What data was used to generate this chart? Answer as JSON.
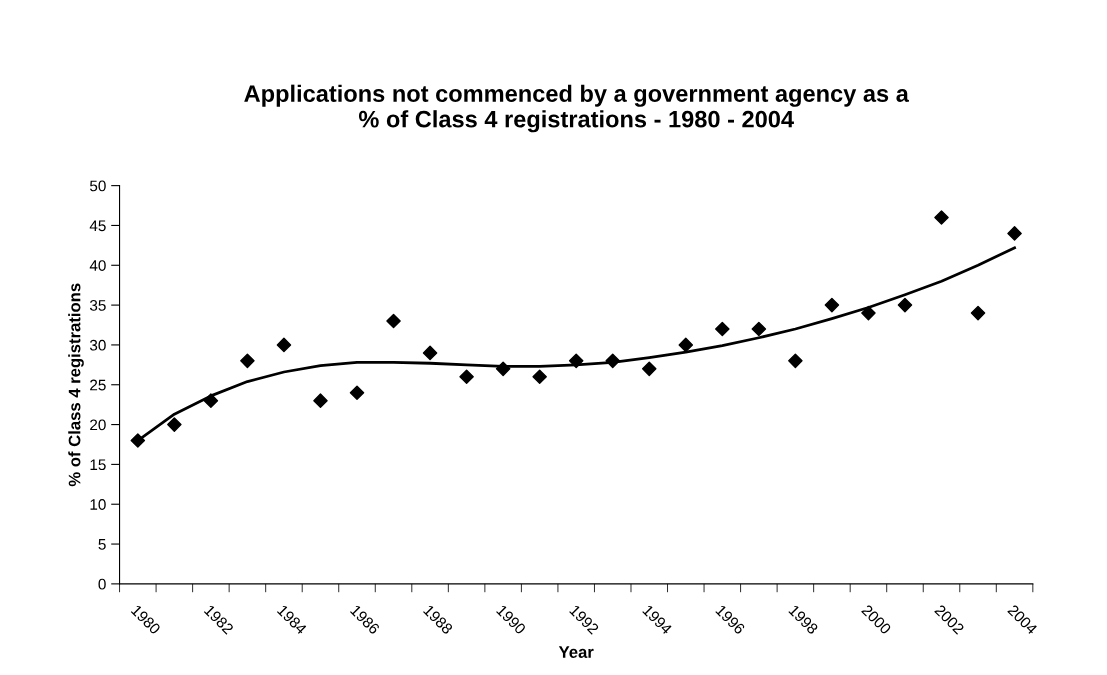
{
  "chart_data": {
    "type": "scatter",
    "title": "Applications not commenced by a government agency as a\n% of Class 4 registrations - 1980 - 2004",
    "xlabel": "Year",
    "ylabel": "% of Class 4 registrations",
    "categories": [
      "1980",
      null,
      "1982",
      null,
      "1984",
      null,
      "1986",
      null,
      "1988",
      null,
      "1990",
      null,
      "1992",
      null,
      "1994",
      null,
      "1996",
      null,
      "1998",
      null,
      "2000",
      null,
      "2002",
      null,
      "2004"
    ],
    "series": [
      {
        "color": "#000000",
        "marker": "diamond",
        "values": [
          18,
          20,
          23,
          28,
          30,
          23,
          24,
          33,
          29,
          26,
          27,
          26,
          28,
          28,
          27,
          30,
          32,
          32,
          28,
          35,
          34,
          35,
          46,
          34,
          44
        ]
      },
      {
        "type": "line",
        "color": "#000000",
        "line_style": "solid",
        "values": [
          18,
          21.3,
          23.6,
          25.4,
          26.6,
          27.4,
          27.8,
          27.8,
          27.7,
          27.5,
          27.3,
          27.3,
          27.5,
          27.8,
          28.4,
          29.1,
          29.9,
          30.9,
          32.0,
          33.3,
          34.7,
          36.3,
          38.0,
          40.0,
          42.2
        ]
      }
    ],
    "ylim": [
      0,
      50
    ],
    "yticks": [
      0,
      5,
      10,
      15,
      20,
      25,
      30,
      35,
      40,
      45,
      50
    ],
    "grid": false,
    "legend": false
  }
}
